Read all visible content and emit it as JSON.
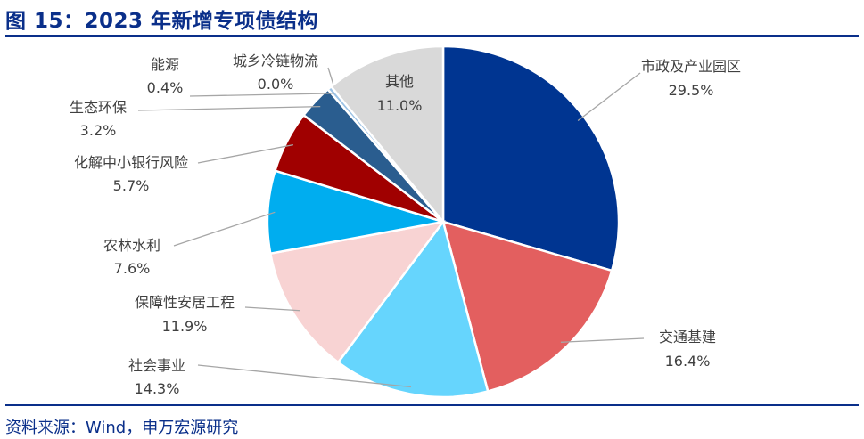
{
  "title": "图 15：2023 年新增专项债结构",
  "source": "资料来源：Wind，申万宏源研究",
  "chart_data": {
    "type": "pie",
    "title": "2023 年新增专项债结构",
    "start": "12 o'clock, clockwise",
    "slices": [
      {
        "label": "市政及产业园区",
        "value": 29.5,
        "pct": "29.5%",
        "color": "#003591"
      },
      {
        "label": "交通基建",
        "value": 16.4,
        "pct": "16.4%",
        "color": "#e35f5f"
      },
      {
        "label": "社会事业",
        "value": 14.3,
        "pct": "14.3%",
        "color": "#66d5fd"
      },
      {
        "label": "保障性安居工程",
        "value": 11.9,
        "pct": "11.9%",
        "color": "#f8d3d3"
      },
      {
        "label": "农林水利",
        "value": 7.6,
        "pct": "7.6%",
        "color": "#00adef"
      },
      {
        "label": "化解中小银行风险",
        "value": 5.7,
        "pct": "5.7%",
        "color": "#a00000"
      },
      {
        "label": "生态环保",
        "value": 3.2,
        "pct": "3.2%",
        "color": "#2a5d8f"
      },
      {
        "label": "能源",
        "value": 0.4,
        "pct": "0.4%",
        "color": "#9cc3e6"
      },
      {
        "label": "城乡冷链物流",
        "value": 0.0,
        "pct": "0.0%",
        "color": "#c00000"
      },
      {
        "label": "其他",
        "value": 11.0,
        "pct": "11.0%",
        "color": "#d9d9d9"
      }
    ]
  }
}
